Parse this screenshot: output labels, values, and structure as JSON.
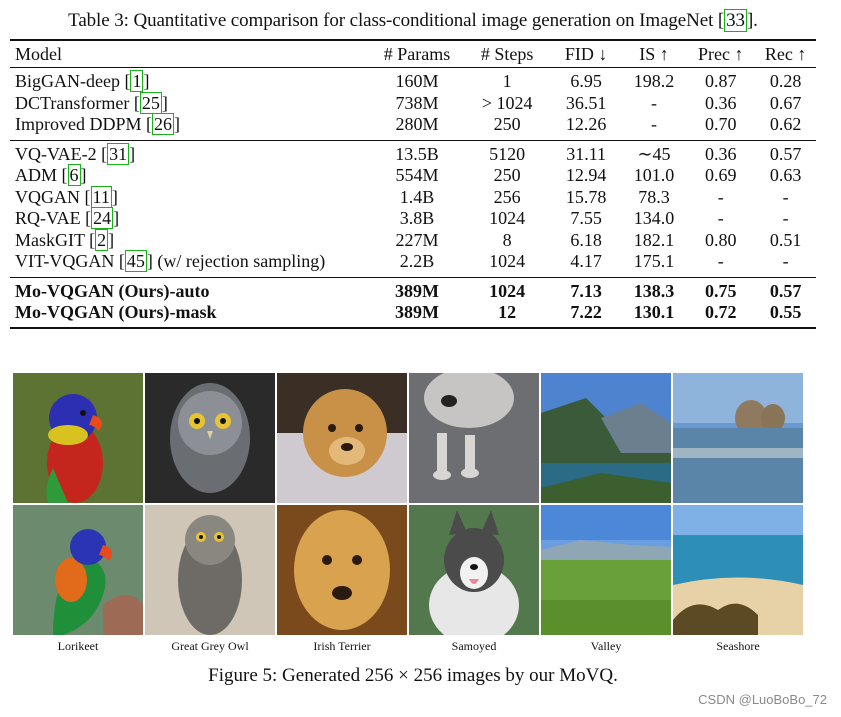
{
  "table": {
    "caption_prefix": "Table 3: Quantitative comparison for class-conditional image generation on ImageNet [",
    "caption_ref": "33",
    "caption_suffix": "].",
    "headers": [
      "Model",
      "# Params",
      "# Steps",
      "FID ↓",
      "IS ↑",
      "Prec ↑",
      "Rec ↑"
    ],
    "groups": [
      [
        {
          "name": "BigGAN-deep ",
          "ref": "1",
          "params": "160M",
          "steps": "1",
          "fid": "6.95",
          "is": "198.2",
          "prec": "0.87",
          "rec": "0.28"
        },
        {
          "name": "DCTransformer ",
          "ref": "25",
          "params": "738M",
          "steps": "> 1024",
          "fid": "36.51",
          "is": "-",
          "prec": "0.36",
          "rec": "0.67"
        },
        {
          "name": "Improved DDPM ",
          "ref": "26",
          "params": "280M",
          "steps": "250",
          "fid": "12.26",
          "is": "-",
          "prec": "0.70",
          "rec": "0.62"
        }
      ],
      [
        {
          "name": "VQ-VAE-2 ",
          "ref": "31",
          "params": "13.5B",
          "steps": "5120",
          "fid": "31.11",
          "is": "∼45",
          "prec": "0.36",
          "rec": "0.57"
        },
        {
          "name": "ADM ",
          "ref": "6",
          "params": "554M",
          "steps": "250",
          "fid": "12.94",
          "is": "101.0",
          "prec": "0.69",
          "rec": "0.63"
        },
        {
          "name": "VQGAN ",
          "ref": "11",
          "params": "1.4B",
          "steps": "256",
          "fid": "15.78",
          "is": "78.3",
          "prec": "-",
          "rec": "-"
        },
        {
          "name": "RQ-VAE ",
          "ref": "24",
          "params": "3.8B",
          "steps": "1024",
          "fid": "7.55",
          "is": "134.0",
          "prec": "-",
          "rec": "-"
        },
        {
          "name": "MaskGIT ",
          "ref": "2",
          "params": "227M",
          "steps": "8",
          "fid": "6.18",
          "is": "182.1",
          "prec": "0.80",
          "rec": "0.51"
        },
        {
          "name": "VIT-VQGAN ",
          "ref": "45",
          "suffix": " (w/ rejection sampling)",
          "params": "2.2B",
          "steps": "1024",
          "fid": "4.17",
          "is": "175.1",
          "prec": "-",
          "rec": "-"
        }
      ],
      [
        {
          "name": "Mo-VQGAN (Ours)-auto",
          "params": "389M",
          "steps": "1024",
          "fid": "7.13",
          "is": "138.3",
          "prec": "0.75",
          "rec": "0.57"
        },
        {
          "name": "Mo-VQGAN (Ours)-mask",
          "params": "389M",
          "steps": "12",
          "fid": "7.22",
          "is": "130.1",
          "prec": "0.72",
          "rec": "0.55"
        }
      ]
    ]
  },
  "figure": {
    "labels": [
      "Lorikeet",
      "Great Grey Owl",
      "Irish Terrier",
      "Samoyed",
      "Valley",
      "Seashore"
    ],
    "caption": "Figure 5: Generated 256 × 256 images by our MoVQ."
  },
  "watermark": "CSDN @LuoBoBo_72"
}
